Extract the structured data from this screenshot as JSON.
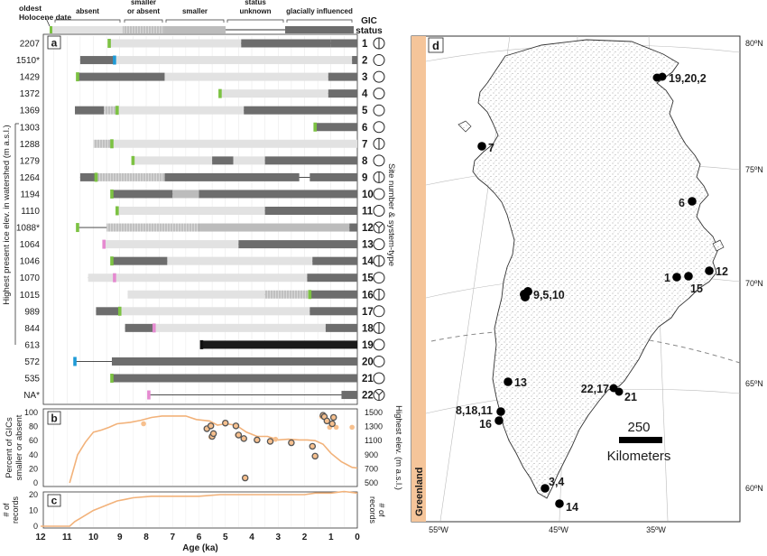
{
  "legend": {
    "oldest_label": "oldest\nHolocene date",
    "categories": [
      {
        "label": "absent",
        "color": "#e2e2e2"
      },
      {
        "label": "smaller\nor absent",
        "color": "#d2d2d2"
      },
      {
        "label": "smaller",
        "color": "#bcbcbc"
      },
      {
        "label": "status\nunknown",
        "color": ""
      },
      {
        "label": "glacially influenced",
        "color": "#6d6d6d"
      }
    ],
    "gic_status_label": "GIC\nstatus"
  },
  "panel_a": {
    "label": "a",
    "yaxis_label": "Highest present ice elev. in watershed (m a.s.l.)",
    "right_axis_label": "Site number & system-type",
    "rows": [
      {
        "elev": "2207",
        "site": "1",
        "type": "split",
        "marker": "green",
        "marker_age": 9.4,
        "segments": [
          [
            9.4,
            4.4,
            "absent"
          ],
          [
            4.4,
            1.0,
            "glacial"
          ],
          [
            1.0,
            0,
            "glacial"
          ]
        ]
      },
      {
        "elev": "1510*",
        "site": "2",
        "type": "circle",
        "marker": "blue",
        "marker_age": 9.2,
        "segments": [
          [
            10.5,
            9.2,
            "glacial"
          ],
          [
            9.2,
            0.2,
            "absent"
          ],
          [
            0.2,
            0,
            "glacial"
          ]
        ]
      },
      {
        "elev": "1429",
        "site": "3",
        "type": "circle",
        "marker": "green",
        "marker_age": 10.6,
        "segments": [
          [
            10.6,
            7.3,
            "glacial"
          ],
          [
            7.3,
            1.1,
            "absent"
          ],
          [
            1.1,
            0,
            "glacial"
          ]
        ]
      },
      {
        "elev": "1372",
        "site": "4",
        "type": "circle",
        "marker": "green",
        "marker_age": 5.2,
        "segments": [
          [
            5.2,
            1.1,
            "absent"
          ],
          [
            1.1,
            0,
            "glacial"
          ]
        ]
      },
      {
        "elev": "1369",
        "site": "5",
        "type": "circle",
        "marker": "green",
        "marker_age": 9.1,
        "segments": [
          [
            10.7,
            9.6,
            "glacial"
          ],
          [
            9.6,
            9.1,
            "smaller_or_absent"
          ],
          [
            9.1,
            4.3,
            "absent"
          ],
          [
            4.3,
            0,
            "glacial"
          ]
        ]
      },
      {
        "elev": "1303",
        "site": "6",
        "type": "circle",
        "marker": "green",
        "marker_age": 1.6,
        "segments": [
          [
            1.6,
            0,
            "glacial"
          ]
        ]
      },
      {
        "elev": "1288",
        "site": "7",
        "type": "split",
        "marker": "green",
        "marker_age": 9.3,
        "segments": [
          [
            10.0,
            9.3,
            "smaller_or_absent"
          ],
          [
            9.3,
            0,
            "absent"
          ]
        ]
      },
      {
        "elev": "1279",
        "site": "8",
        "type": "circle",
        "marker": "green",
        "marker_age": 8.5,
        "segments": [
          [
            8.5,
            5.5,
            "absent"
          ],
          [
            5.5,
            4.7,
            "glacial"
          ],
          [
            4.7,
            3.5,
            "absent"
          ],
          [
            3.5,
            0,
            "glacial"
          ]
        ]
      },
      {
        "elev": "1264",
        "site": "9",
        "type": "split",
        "marker": "green",
        "marker_age": 9.9,
        "segments": [
          [
            10.5,
            9.9,
            "glacial"
          ],
          [
            9.9,
            7.3,
            "smaller_or_absent"
          ],
          [
            7.3,
            2.2,
            "glacial"
          ],
          [
            1.8,
            0,
            "glacial"
          ]
        ]
      },
      {
        "elev": "1194",
        "site": "10",
        "type": "circle",
        "marker": "green",
        "marker_age": 9.3,
        "segments": [
          [
            9.3,
            7.0,
            "glacial"
          ],
          [
            7.0,
            6.0,
            "smaller"
          ],
          [
            6.0,
            0,
            "glacial"
          ]
        ]
      },
      {
        "elev": "1110",
        "site": "11",
        "type": "circle",
        "marker": "green",
        "marker_age": 9.1,
        "segments": [
          [
            9.1,
            3.5,
            "absent"
          ],
          [
            3.5,
            0,
            "glacial"
          ]
        ]
      },
      {
        "elev": "1088*",
        "site": "12",
        "type": "y",
        "marker": "green",
        "marker_age": 10.6,
        "segments": [
          [
            9.5,
            6.0,
            "smaller_or_absent"
          ],
          [
            6.0,
            0.3,
            "smaller"
          ],
          [
            0.3,
            0,
            "glacial"
          ]
        ]
      },
      {
        "elev": "1064",
        "site": "13",
        "type": "circle",
        "marker": "pink",
        "marker_age": 9.6,
        "segments": [
          [
            9.6,
            4.5,
            "absent"
          ],
          [
            4.5,
            0,
            "glacial"
          ]
        ]
      },
      {
        "elev": "1046",
        "site": "14",
        "type": "split",
        "marker": "green",
        "marker_age": 9.3,
        "segments": [
          [
            9.3,
            7.2,
            "glacial"
          ],
          [
            7.2,
            1.7,
            "absent"
          ],
          [
            1.7,
            0,
            "glacial"
          ]
        ]
      },
      {
        "elev": "1070",
        "site": "15",
        "type": "circle",
        "marker": "pink",
        "marker_age": 9.2,
        "segments": [
          [
            10.2,
            9.2,
            "absent"
          ],
          [
            9.2,
            1.9,
            "absent"
          ],
          [
            1.9,
            0,
            "glacial"
          ]
        ]
      },
      {
        "elev": "1015",
        "site": "16",
        "type": "split",
        "marker": "green",
        "marker_age": 1.8,
        "segments": [
          [
            8.7,
            3.5,
            "absent"
          ],
          [
            3.5,
            1.8,
            "smaller_or_absent"
          ],
          [
            1.8,
            0,
            "glacial"
          ]
        ]
      },
      {
        "elev": "989",
        "site": "17",
        "type": "circle",
        "marker": "green",
        "marker_age": 9.0,
        "segments": [
          [
            9.9,
            9.0,
            "glacial"
          ],
          [
            9.0,
            1.8,
            "absent"
          ],
          [
            1.8,
            0,
            "glacial"
          ]
        ]
      },
      {
        "elev": "844",
        "site": "18",
        "type": "split",
        "marker": "pink",
        "marker_age": 7.7,
        "segments": [
          [
            8.8,
            7.7,
            "glacial"
          ],
          [
            7.7,
            1.2,
            "absent"
          ],
          [
            1.2,
            0,
            "glacial"
          ]
        ]
      },
      {
        "elev": "613",
        "site": "19",
        "type": "circle",
        "marker": "black",
        "marker_age": 5.9,
        "segments": [
          [
            5.9,
            0,
            "glacial_dark"
          ]
        ]
      },
      {
        "elev": "572",
        "site": "20",
        "type": "circle",
        "marker": "blue",
        "marker_age": 10.7,
        "segments": [
          [
            9.3,
            0,
            "glacial"
          ]
        ]
      },
      {
        "elev": "535",
        "site": "21",
        "type": "circle",
        "marker": "green",
        "marker_age": 9.3,
        "segments": [
          [
            9.3,
            0,
            "glacial"
          ]
        ]
      },
      {
        "elev": "NA*",
        "site": "22",
        "type": "y",
        "marker": "pink",
        "marker_age": 7.9,
        "segments": [
          [
            0.6,
            0,
            "glacial"
          ]
        ]
      }
    ]
  },
  "chart_data": [
    {
      "type": "line",
      "panel": "b",
      "xlabel": "Age (ka)",
      "ylabel": "Percent of GICs\nsmaller or absent",
      "ylabel_right": "Highest elev. (m a.s.l.)",
      "ylim": [
        0,
        100
      ],
      "yticks": [
        "0",
        "20",
        "40",
        "60",
        "80",
        "100"
      ],
      "yticks_right": [
        "500",
        "700",
        "900",
        "1100",
        "1300",
        "1500"
      ],
      "xlim": [
        12,
        0
      ],
      "series": [
        {
          "values_x": [
            10.9,
            10.6,
            10.3,
            10.0,
            9.7,
            9.4,
            9.1,
            8.6,
            8.2,
            7.8,
            7.4,
            7.0,
            6.5,
            6.1,
            5.6,
            5.3,
            5.0,
            4.6,
            4.2,
            3.8,
            3.4,
            3.0,
            2.6,
            2.2,
            1.9,
            1.6,
            1.3,
            1.0,
            0.6,
            0.2,
            0.0
          ],
          "values_y": [
            0,
            40,
            58,
            72,
            75,
            79,
            84,
            86,
            89,
            93,
            95,
            95,
            95,
            90,
            88,
            82,
            84,
            82,
            72,
            66,
            66,
            61,
            62,
            61,
            61,
            60,
            55,
            42,
            30,
            22,
            21
          ]
        }
      ],
      "points_open": [
        [
          5.7,
          77
        ],
        [
          5.55,
          81
        ],
        [
          5.5,
          66
        ],
        [
          5.45,
          70
        ],
        [
          5.0,
          85
        ],
        [
          4.6,
          81
        ],
        [
          4.5,
          68
        ],
        [
          4.3,
          63
        ],
        [
          4.25,
          7
        ],
        [
          3.8,
          61
        ],
        [
          3.3,
          59
        ],
        [
          2.5,
          57
        ],
        [
          1.7,
          52
        ],
        [
          1.6,
          38
        ],
        [
          1.3,
          96
        ],
        [
          1.25,
          94
        ],
        [
          1.15,
          88
        ],
        [
          0.95,
          84
        ],
        [
          0.9,
          93
        ]
      ],
      "points_filled": [
        [
          8.1,
          84
        ],
        [
          5.55,
          65
        ],
        [
          4.55,
          68
        ],
        [
          3.1,
          62
        ],
        [
          1.35,
          94
        ],
        [
          1.05,
          79
        ],
        [
          0.8,
          79
        ],
        [
          0.2,
          79
        ]
      ]
    },
    {
      "type": "line",
      "panel": "c",
      "xlabel": "Age (ka)",
      "ylabel": "# of\nrecords",
      "ylabel_right": "# of\nrecords",
      "ylim": [
        0,
        20
      ],
      "yticks": [
        "0",
        "10",
        "20"
      ],
      "xlim": [
        12,
        0
      ],
      "xticks": [
        "12",
        "11",
        "10",
        "9",
        "8",
        "7",
        "6",
        "5",
        "4",
        "3",
        "2",
        "1",
        "0"
      ],
      "series": [
        {
          "values_x": [
            12,
            10.9,
            10.7,
            10.5,
            10.0,
            9.7,
            9.4,
            9.1,
            8.8,
            8.5,
            7.8,
            7.3,
            6.0,
            5.2,
            4.4,
            2.0,
            1.6,
            1.0,
            0.5,
            0.0
          ],
          "values_y": [
            0,
            0,
            3,
            5,
            10,
            12,
            14,
            16,
            17,
            18,
            19,
            19,
            19,
            20,
            20,
            20,
            21,
            21,
            22,
            21
          ]
        }
      ]
    }
  ],
  "map": {
    "label": "d",
    "region_label": "Greenland",
    "lat_labels": [
      "80ºN",
      "75ºN",
      "70ºN",
      "65ºN",
      "60ºN"
    ],
    "lon_labels": [
      "55ºW",
      "45ºW",
      "35ºW"
    ],
    "scale_value": "250",
    "scale_unit": "Kilometers",
    "sites": [
      {
        "label": "19,20,2",
        "anchor": "right"
      },
      {
        "label": "7",
        "anchor": "right"
      },
      {
        "label": "6",
        "anchor": "left"
      },
      {
        "label": "12",
        "anchor": "right"
      },
      {
        "label": "1",
        "anchor": "left"
      },
      {
        "label": "15",
        "anchor": "right"
      },
      {
        "label": "9,5,10",
        "anchor": "right"
      },
      {
        "label": "13",
        "anchor": "right"
      },
      {
        "label": "22,17",
        "anchor": "left"
      },
      {
        "label": "21",
        "anchor": "right"
      },
      {
        "label": "8,18,11",
        "anchor": "left"
      },
      {
        "label": "16",
        "anchor": "left"
      },
      {
        "label": "3,4",
        "anchor": "right"
      },
      {
        "label": "14",
        "anchor": "right"
      }
    ]
  }
}
